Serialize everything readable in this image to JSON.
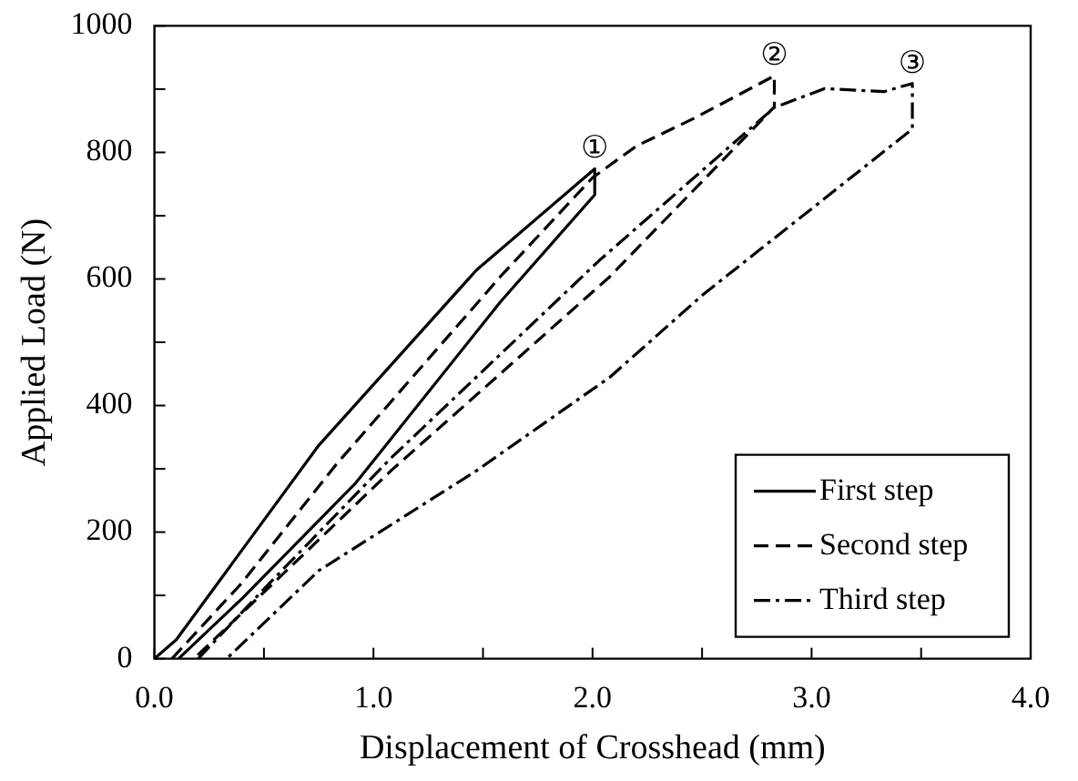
{
  "chart_data": {
    "type": "line",
    "xlabel": "Displacement of Crosshead (mm)",
    "ylabel": "Applied Load (N)",
    "xlim": [
      0,
      4
    ],
    "ylim": [
      0,
      1000
    ],
    "xticks": [
      {
        "value": 0,
        "label": "0.0"
      },
      {
        "value": 0.5,
        "label": null
      },
      {
        "value": 1,
        "label": "1.0"
      },
      {
        "value": 1.5,
        "label": null
      },
      {
        "value": 2,
        "label": "2.0"
      },
      {
        "value": 2.5,
        "label": null
      },
      {
        "value": 3,
        "label": "3.0"
      },
      {
        "value": 3.5,
        "label": null
      },
      {
        "value": 4,
        "label": "4.0"
      }
    ],
    "yticks": [
      0,
      {
        "value": 100,
        "label": null
      },
      200,
      {
        "value": 300,
        "label": null
      },
      400,
      {
        "value": 500,
        "label": null
      },
      600,
      {
        "value": 700,
        "label": null
      },
      800,
      {
        "value": 900,
        "label": null
      },
      1000
    ],
    "grid": false,
    "legend": "bottom right",
    "marker": "none",
    "series": [
      {
        "name": "First step",
        "color": "#000000",
        "line_style": "solid",
        "x": [
          0,
          0.1,
          0.75,
          1.47,
          2.01,
          2.01,
          1.58,
          0.92,
          0.4,
          0.11
        ],
        "values": [
          0,
          30,
          337,
          614,
          774,
          733,
          564,
          278,
          95,
          0
        ]
      },
      {
        "name": "Second step",
        "color": "#000000",
        "line_style": "dashed",
        "x": [
          0.08,
          0.4,
          0.83,
          1.58,
          2.0,
          2.2,
          2.47,
          2.83,
          2.83,
          2.08,
          1.08,
          0.5,
          0.18
        ],
        "values": [
          0,
          120,
          307,
          604,
          760,
          810,
          855,
          921,
          872,
          604,
          297,
          105,
          0
        ]
      },
      {
        "name": "Third step",
        "color": "#000000",
        "line_style": "dashed-dot",
        "x": [
          0.2,
          0.5,
          1.08,
          2.03,
          2.83,
          3.06,
          3.33,
          3.46,
          3.46,
          2.5,
          2.08,
          1.47,
          0.75,
          0.33
        ],
        "values": [
          0,
          110,
          317,
          629,
          871,
          901,
          896,
          909,
          837,
          574,
          445,
          297,
          139,
          0
        ]
      }
    ],
    "annotations": [
      {
        "text": "①",
        "x": 2.01,
        "y": 774
      },
      {
        "text": "②",
        "x": 2.83,
        "y": 921
      },
      {
        "text": "③",
        "x": 3.46,
        "y": 909
      }
    ]
  }
}
